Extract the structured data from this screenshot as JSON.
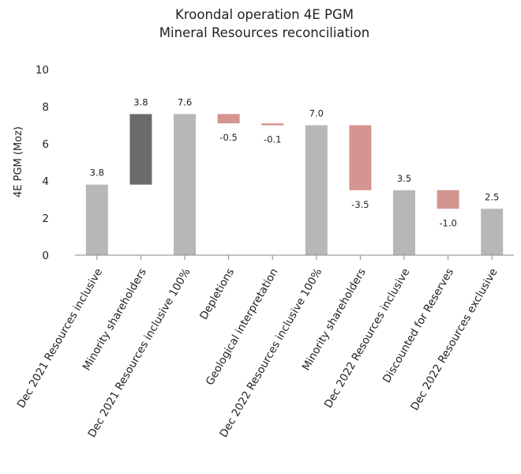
{
  "chart_data": {
    "type": "bar",
    "subtype": "waterfall",
    "title_lines": [
      "Kroondal operation 4E PGM",
      "Mineral Resources reconciliation"
    ],
    "xlabel": "",
    "ylabel": "4E PGM (Moz)",
    "ylim": [
      0,
      10
    ],
    "yticks": [
      "0",
      "2",
      "4",
      "6",
      "8",
      "10"
    ],
    "grid": false,
    "legend": "none",
    "categories": [
      "Dec 2021 Resources inclusive",
      "Minority shareholders",
      "Dec 2021 Resources inclusive 100%",
      "Depletions",
      "Geological interpretation",
      "Dec 2022 Resources inclusive 100%",
      "Minority shareholders",
      "Dec 2022 Resources inclusive",
      "Discounted for Reserves",
      "Dec 2022 Resources exclusive"
    ],
    "values": [
      3.8,
      3.8,
      7.6,
      -0.5,
      -0.1,
      7.0,
      -3.5,
      3.5,
      -1.0,
      2.5
    ],
    "data_labels": [
      "3.8",
      "3.8",
      "7.6",
      "-0.5",
      "-0.1",
      "7.0",
      "-3.5",
      "3.5",
      "-1.0",
      "2.5"
    ],
    "bar_kinds": [
      "total",
      "increase",
      "total",
      "decrease",
      "decrease",
      "total",
      "decrease",
      "total",
      "decrease",
      "total"
    ],
    "bar_bottoms": [
      0,
      3.8,
      0,
      7.6,
      7.1,
      0,
      7.0,
      0,
      3.5,
      0
    ],
    "bar_tops": [
      3.8,
      7.6,
      7.6,
      7.1,
      7.0,
      7.0,
      3.5,
      3.5,
      2.5,
      2.5
    ],
    "colors": {
      "total": "#b7b7b7",
      "increase": "#6b6b6b",
      "decrease": "#d4948f",
      "axis": "#888888"
    }
  }
}
